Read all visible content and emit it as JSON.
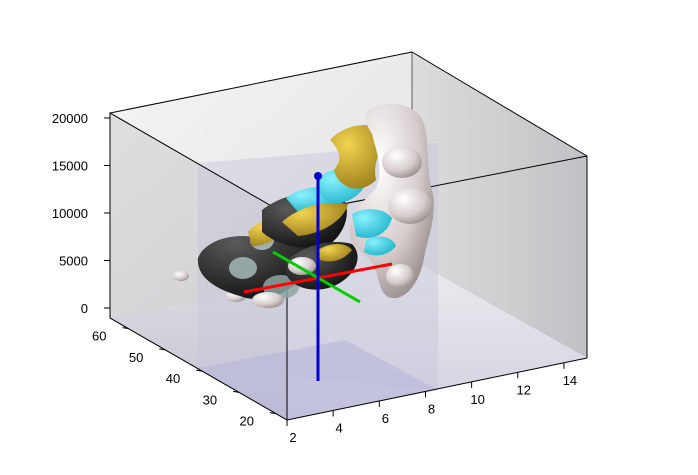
{
  "chart_data": {
    "type": "3d-isosurface",
    "title": "",
    "xlabel": "",
    "ylabel": "",
    "zlabel": "",
    "x_axis": {
      "ticks": [
        2,
        4,
        6,
        8,
        10,
        12,
        14
      ],
      "range": [
        2,
        15
      ]
    },
    "y_axis": {
      "ticks": [
        20,
        30,
        40,
        50,
        60
      ],
      "range": [
        17,
        65
      ]
    },
    "z_axis": {
      "ticks": [
        0,
        5000,
        10000,
        15000,
        20000
      ],
      "range": [
        0,
        20000
      ]
    },
    "axis_lines": [
      {
        "name": "x-axis-line",
        "color": "#ff0000"
      },
      {
        "name": "y-axis-line",
        "color": "#00cc00"
      },
      {
        "name": "z-axis-line",
        "color": "#0000cc"
      }
    ],
    "surface_colors": [
      "#1a1a1a",
      "#d8cece",
      "#2fd0e6",
      "#c8a21a",
      "#9fb3b0"
    ]
  }
}
